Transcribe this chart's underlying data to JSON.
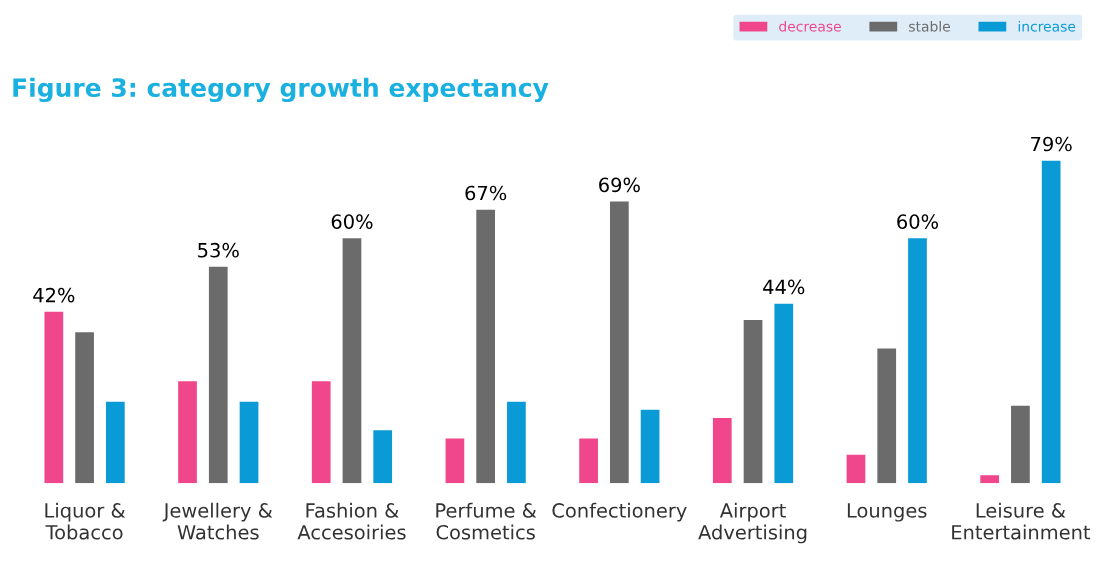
{
  "chart_data": {
    "type": "bar",
    "title": "Figure 3: category growth expectancy",
    "categories": [
      "Liquor &\nTobacco",
      "Jewellery &\nWatches",
      "Fashion &\nAccesoiries",
      "Perfume &\nCosmetics",
      "Confectionery",
      "Airport\nAdvertising",
      "Lounges",
      "Leisure &\nEntertainment"
    ],
    "series": [
      {
        "name": "decrease",
        "color": "#f0468c",
        "values": [
          42,
          25,
          25,
          11,
          11,
          16,
          7,
          2
        ],
        "value_labels": [
          "42%",
          null,
          null,
          null,
          null,
          null,
          null,
          null
        ]
      },
      {
        "name": "stable",
        "color": "#6b6b6b",
        "values": [
          37,
          53,
          60,
          67,
          69,
          40,
          33,
          19
        ],
        "value_labels": [
          null,
          "53%",
          "60%",
          "67%",
          "69%",
          null,
          null,
          null
        ]
      },
      {
        "name": "increase",
        "color": "#0a9ad6",
        "values": [
          20,
          20,
          13,
          20,
          18,
          44,
          60,
          79
        ],
        "value_labels": [
          null,
          null,
          null,
          null,
          null,
          "44%",
          "60%",
          "79%"
        ]
      }
    ],
    "tick_labels": "x",
    "legend": "top right",
    "grid": false
  }
}
